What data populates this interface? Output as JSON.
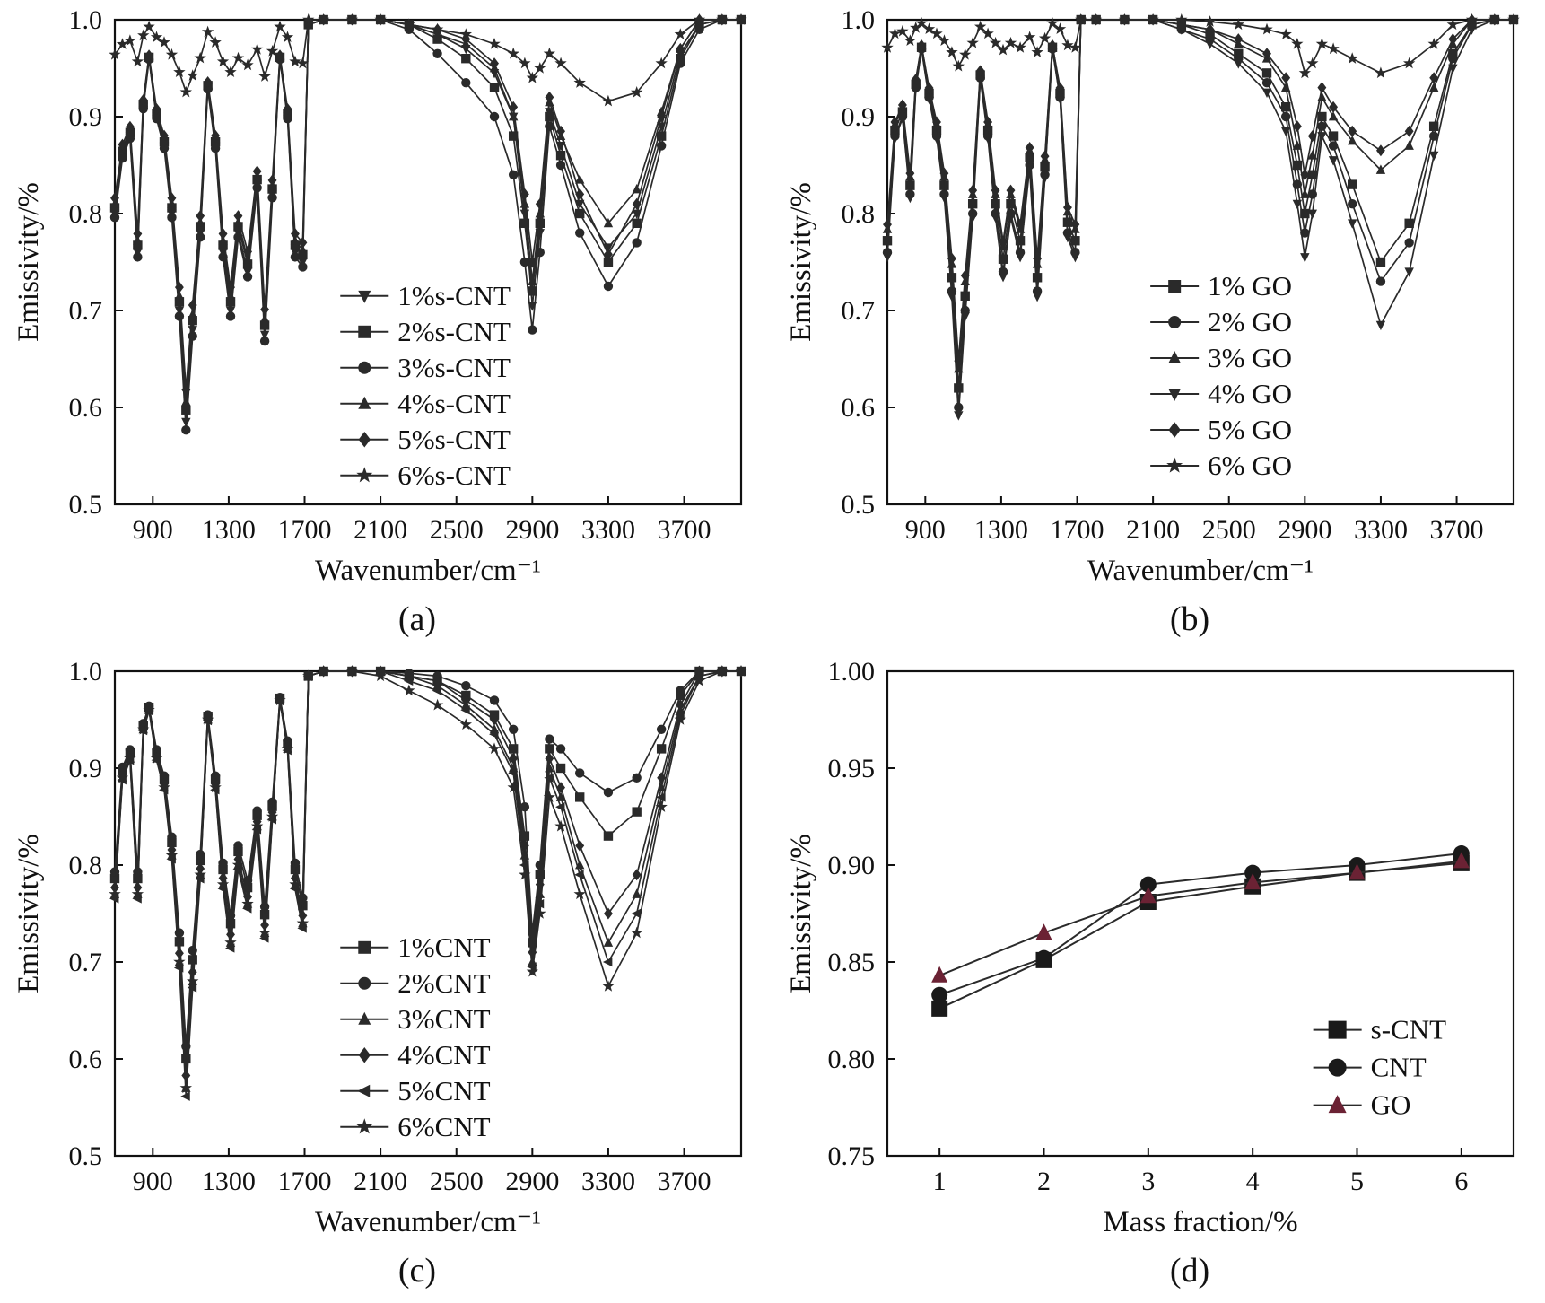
{
  "figure": {
    "captions": {
      "a": "(a)",
      "b": "(b)",
      "c": "(c)",
      "d": "(d)"
    }
  },
  "colors": {
    "line": "#2a2a2a",
    "text": "#111111",
    "go_marker": "#6b2234",
    "background": "#ffffff"
  },
  "chart_data": [
    {
      "id": "a",
      "type": "line",
      "xlabel": "Wavenumber/cm⁻¹",
      "ylabel": "Emissivity/%",
      "xlim": [
        700,
        4000
      ],
      "ylim": [
        0.5,
        1.0
      ],
      "xticks": [
        900,
        1300,
        1700,
        2100,
        2500,
        2900,
        3300,
        3700
      ],
      "yticks": [
        0.5,
        0.6,
        0.7,
        0.8,
        0.9,
        1.0
      ],
      "ytick_labels": [
        "0.5",
        "0.6",
        "0.7",
        "0.8",
        "0.9",
        "1.0"
      ],
      "legend_pos": [
        0.36,
        0.57
      ],
      "fingerprint_x": [
        700,
        740,
        780,
        820,
        850,
        880,
        920,
        960,
        1000,
        1040,
        1075,
        1110,
        1150,
        1190,
        1230,
        1270,
        1310,
        1350,
        1400,
        1450,
        1490,
        1530,
        1570,
        1610,
        1650,
        1690
      ],
      "fingerprint_y": [
        0.8,
        0.86,
        0.88,
        0.76,
        0.91,
        0.96,
        0.9,
        0.87,
        0.8,
        0.7,
        0.585,
        0.68,
        0.78,
        0.93,
        0.87,
        0.76,
        0.7,
        0.78,
        0.74,
        0.83,
        0.675,
        0.82,
        0.96,
        0.9,
        0.76,
        0.75
      ],
      "upper_x": [
        1720,
        1800,
        1950,
        2100,
        2250,
        2400,
        2550,
        2700,
        2800,
        2860,
        2900,
        2940,
        2990,
        3050,
        3150,
        3300,
        3450,
        3580,
        3680,
        3780,
        3900,
        4000
      ],
      "series": [
        {
          "name": "1%s-CNT",
          "marker": "triangle-down",
          "fp_scale": 1.0,
          "upper_y": [
            0.995,
            1.0,
            1.0,
            1.0,
            0.995,
            0.985,
            0.97,
            0.945,
            0.9,
            0.8,
            0.705,
            0.78,
            0.905,
            0.87,
            0.81,
            0.765,
            0.8,
            0.89,
            0.965,
            0.995,
            1.0,
            1.0
          ]
        },
        {
          "name": "2%s-CNT",
          "marker": "square",
          "fp_scale": 0.97,
          "upper_y": [
            0.995,
            1.0,
            1.0,
            1.0,
            0.995,
            0.98,
            0.96,
            0.93,
            0.88,
            0.79,
            0.72,
            0.79,
            0.9,
            0.86,
            0.8,
            0.75,
            0.79,
            0.88,
            0.96,
            0.995,
            1.0,
            1.0
          ]
        },
        {
          "name": "3%s-CNT",
          "marker": "circle",
          "fp_scale": 1.02,
          "upper_y": [
            0.995,
            1.0,
            1.0,
            1.0,
            0.99,
            0.965,
            0.935,
            0.9,
            0.84,
            0.75,
            0.68,
            0.76,
            0.89,
            0.85,
            0.78,
            0.725,
            0.77,
            0.87,
            0.955,
            0.99,
            1.0,
            1.0
          ]
        },
        {
          "name": "4%s-CNT",
          "marker": "triangle-up",
          "fp_scale": 0.95,
          "upper_y": [
            0.995,
            1.0,
            1.0,
            1.0,
            0.995,
            0.985,
            0.975,
            0.95,
            0.9,
            0.81,
            0.73,
            0.8,
            0.915,
            0.88,
            0.835,
            0.79,
            0.825,
            0.905,
            0.97,
            1.0,
            1.0,
            1.0
          ]
        },
        {
          "name": "5%s-CNT",
          "marker": "diamond",
          "fp_scale": 0.92,
          "upper_y": [
            0.995,
            1.0,
            1.0,
            1.0,
            0.995,
            0.99,
            0.98,
            0.955,
            0.91,
            0.82,
            0.75,
            0.81,
            0.92,
            0.885,
            0.82,
            0.758,
            0.81,
            0.9,
            0.97,
            1.0,
            1.0,
            1.0
          ]
        },
        {
          "name": "6%s-CNT",
          "marker": "star",
          "fp_scale": 0.18,
          "upper_y": [
            1.0,
            1.0,
            1.0,
            1.0,
            0.995,
            0.99,
            0.985,
            0.975,
            0.965,
            0.955,
            0.94,
            0.95,
            0.965,
            0.955,
            0.935,
            0.916,
            0.925,
            0.955,
            0.985,
            1.0,
            1.0,
            1.0
          ]
        }
      ]
    },
    {
      "id": "b",
      "type": "line",
      "xlabel": "Wavenumber/cm⁻¹",
      "ylabel": "Emissivity/%",
      "xlim": [
        700,
        4000
      ],
      "ylim": [
        0.5,
        1.0
      ],
      "xticks": [
        900,
        1300,
        1700,
        2100,
        2500,
        2900,
        3300,
        3700
      ],
      "yticks": [
        0.5,
        0.6,
        0.7,
        0.8,
        0.9,
        1.0
      ],
      "ytick_labels": [
        "0.5",
        "0.6",
        "0.7",
        "0.8",
        "0.9",
        "1.0"
      ],
      "legend_pos": [
        0.42,
        0.55
      ],
      "fingerprint_x": [
        700,
        740,
        780,
        820,
        850,
        880,
        920,
        960,
        1000,
        1040,
        1075,
        1110,
        1150,
        1190,
        1230,
        1270,
        1310,
        1350,
        1400,
        1450,
        1490,
        1530,
        1570,
        1610,
        1650,
        1690
      ],
      "fingerprint_y": [
        0.76,
        0.88,
        0.9,
        0.82,
        0.93,
        0.97,
        0.92,
        0.88,
        0.82,
        0.72,
        0.6,
        0.7,
        0.8,
        0.94,
        0.88,
        0.8,
        0.74,
        0.8,
        0.76,
        0.85,
        0.72,
        0.84,
        0.97,
        0.92,
        0.78,
        0.76
      ],
      "upper_x": [
        1720,
        1800,
        1950,
        2100,
        2250,
        2400,
        2550,
        2700,
        2800,
        2860,
        2900,
        2940,
        2990,
        3050,
        3150,
        3300,
        3450,
        3580,
        3680,
        3780,
        3900,
        4000
      ],
      "series": [
        {
          "name": "1% GO",
          "marker": "square",
          "fp_scale": 0.95,
          "upper_y": [
            1.0,
            1.0,
            1.0,
            1.0,
            0.995,
            0.985,
            0.965,
            0.945,
            0.91,
            0.85,
            0.8,
            0.84,
            0.9,
            0.88,
            0.83,
            0.75,
            0.79,
            0.89,
            0.965,
            0.995,
            1.0,
            1.0
          ]
        },
        {
          "name": "2% GO",
          "marker": "circle",
          "fp_scale": 1.0,
          "upper_y": [
            1.0,
            1.0,
            1.0,
            1.0,
            0.99,
            0.98,
            0.96,
            0.935,
            0.9,
            0.83,
            0.78,
            0.82,
            0.89,
            0.87,
            0.81,
            0.73,
            0.77,
            0.88,
            0.96,
            0.995,
            1.0,
            1.0
          ]
        },
        {
          "name": "3% GO",
          "marker": "triangle-up",
          "fp_scale": 0.9,
          "upper_y": [
            1.0,
            1.0,
            1.0,
            1.0,
            0.995,
            0.99,
            0.975,
            0.96,
            0.93,
            0.87,
            0.82,
            0.86,
            0.92,
            0.9,
            0.875,
            0.845,
            0.87,
            0.93,
            0.975,
            1.0,
            1.0,
            1.0
          ]
        },
        {
          "name": "4% GO",
          "marker": "triangle-down",
          "fp_scale": 1.02,
          "upper_y": [
            1.0,
            1.0,
            1.0,
            1.0,
            0.99,
            0.975,
            0.955,
            0.925,
            0.885,
            0.81,
            0.755,
            0.8,
            0.88,
            0.855,
            0.79,
            0.685,
            0.74,
            0.86,
            0.95,
            0.99,
            1.0,
            1.0
          ]
        },
        {
          "name": "5% GO",
          "marker": "diamond",
          "fp_scale": 0.88,
          "upper_y": [
            1.0,
            1.0,
            1.0,
            1.0,
            0.995,
            0.99,
            0.98,
            0.965,
            0.94,
            0.89,
            0.84,
            0.88,
            0.93,
            0.91,
            0.885,
            0.865,
            0.885,
            0.94,
            0.98,
            1.0,
            1.0,
            1.0
          ]
        },
        {
          "name": "6% GO",
          "marker": "star",
          "fp_scale": 0.12,
          "upper_y": [
            1.0,
            1.0,
            1.0,
            1.0,
            1.0,
            0.998,
            0.995,
            0.99,
            0.985,
            0.975,
            0.945,
            0.955,
            0.975,
            0.97,
            0.96,
            0.945,
            0.955,
            0.975,
            0.995,
            1.0,
            1.0,
            1.0
          ]
        }
      ]
    },
    {
      "id": "c",
      "type": "line",
      "xlabel": "Wavenumber/cm⁻¹",
      "ylabel": "Emissivity/%",
      "xlim": [
        700,
        4000
      ],
      "ylim": [
        0.5,
        1.0
      ],
      "xticks": [
        900,
        1300,
        1700,
        2100,
        2500,
        2900,
        3300,
        3700
      ],
      "yticks": [
        0.5,
        0.6,
        0.7,
        0.8,
        0.9,
        1.0
      ],
      "ytick_labels": [
        "0.5",
        "0.6",
        "0.7",
        "0.8",
        "0.9",
        "1.0"
      ],
      "legend_pos": [
        0.36,
        0.57
      ],
      "fingerprint_x": [
        700,
        740,
        780,
        820,
        850,
        880,
        920,
        960,
        1000,
        1040,
        1075,
        1110,
        1150,
        1190,
        1230,
        1270,
        1310,
        1350,
        1400,
        1450,
        1490,
        1530,
        1570,
        1610,
        1650,
        1690
      ],
      "fingerprint_y": [
        0.77,
        0.89,
        0.91,
        0.77,
        0.94,
        0.96,
        0.91,
        0.88,
        0.81,
        0.7,
        0.57,
        0.68,
        0.79,
        0.95,
        0.88,
        0.78,
        0.72,
        0.8,
        0.76,
        0.84,
        0.73,
        0.85,
        0.97,
        0.92,
        0.78,
        0.74
      ],
      "upper_x": [
        1720,
        1800,
        1950,
        2100,
        2250,
        2400,
        2550,
        2700,
        2800,
        2860,
        2900,
        2940,
        2990,
        3050,
        3150,
        3300,
        3450,
        3580,
        3680,
        3780,
        3900,
        4000
      ],
      "series": [
        {
          "name": "1%CNT",
          "marker": "square",
          "fp_scale": 0.93,
          "upper_y": [
            0.995,
            1.0,
            1.0,
            1.0,
            0.995,
            0.99,
            0.975,
            0.955,
            0.92,
            0.83,
            0.72,
            0.79,
            0.92,
            0.9,
            0.87,
            0.83,
            0.855,
            0.92,
            0.975,
            1.0,
            1.0,
            1.0
          ]
        },
        {
          "name": "2%CNT",
          "marker": "circle",
          "fp_scale": 0.9,
          "upper_y": [
            0.995,
            1.0,
            1.0,
            1.0,
            0.998,
            0.995,
            0.985,
            0.97,
            0.94,
            0.86,
            0.73,
            0.8,
            0.93,
            0.92,
            0.895,
            0.875,
            0.89,
            0.94,
            0.98,
            1.0,
            1.0,
            1.0
          ]
        },
        {
          "name": "3%CNT",
          "marker": "triangle-up",
          "fp_scale": 1.0,
          "upper_y": [
            0.995,
            1.0,
            1.0,
            1.0,
            0.995,
            0.985,
            0.965,
            0.94,
            0.9,
            0.81,
            0.7,
            0.77,
            0.9,
            0.87,
            0.8,
            0.72,
            0.77,
            0.88,
            0.96,
            0.995,
            1.0,
            1.0
          ]
        },
        {
          "name": "4%CNT",
          "marker": "diamond",
          "fp_scale": 0.97,
          "upper_y": [
            0.995,
            1.0,
            1.0,
            1.0,
            0.995,
            0.99,
            0.97,
            0.95,
            0.91,
            0.82,
            0.71,
            0.78,
            0.91,
            0.88,
            0.82,
            0.75,
            0.79,
            0.89,
            0.965,
            1.0,
            1.0,
            1.0
          ]
        },
        {
          "name": "5%CNT",
          "marker": "triangle-left",
          "fp_scale": 1.02,
          "upper_y": [
            0.995,
            1.0,
            1.0,
            1.0,
            0.99,
            0.98,
            0.96,
            0.935,
            0.895,
            0.8,
            0.695,
            0.76,
            0.89,
            0.86,
            0.79,
            0.7,
            0.75,
            0.87,
            0.955,
            0.995,
            1.0,
            1.0
          ]
        },
        {
          "name": "6%CNT",
          "marker": "star",
          "fp_scale": 1.0,
          "upper_y": [
            0.995,
            1.0,
            1.0,
            0.995,
            0.98,
            0.965,
            0.945,
            0.92,
            0.88,
            0.79,
            0.69,
            0.75,
            0.87,
            0.84,
            0.77,
            0.675,
            0.73,
            0.86,
            0.95,
            0.99,
            1.0,
            1.0
          ]
        }
      ]
    },
    {
      "id": "d",
      "type": "line",
      "xlabel": "Mass fraction/%",
      "ylabel": "Emissivity/%",
      "xlim": [
        0.5,
        6.5
      ],
      "ylim": [
        0.75,
        1.0
      ],
      "xticks": [
        1,
        2,
        3,
        4,
        5,
        6
      ],
      "yticks": [
        0.75,
        0.8,
        0.85,
        0.9,
        0.95,
        1.0
      ],
      "ytick_labels": [
        "0.75",
        "0.80",
        "0.85",
        "0.90",
        "0.95",
        "1.00"
      ],
      "legend_pos": [
        0.68,
        0.74
      ],
      "x": [
        1,
        2,
        3,
        4,
        5,
        6
      ],
      "series": [
        {
          "name": "s-CNT",
          "marker": "square",
          "color": "#1a1a1a",
          "y": [
            0.826,
            0.851,
            0.881,
            0.889,
            0.896,
            0.901
          ]
        },
        {
          "name": "CNT",
          "marker": "circle",
          "color": "#1a1a1a",
          "y": [
            0.833,
            0.852,
            0.89,
            0.896,
            0.9,
            0.906
          ]
        },
        {
          "name": "GO",
          "marker": "triangle-up",
          "color": "#6b2234",
          "y": [
            0.843,
            0.865,
            0.884,
            0.891,
            0.896,
            0.902
          ]
        }
      ]
    }
  ]
}
